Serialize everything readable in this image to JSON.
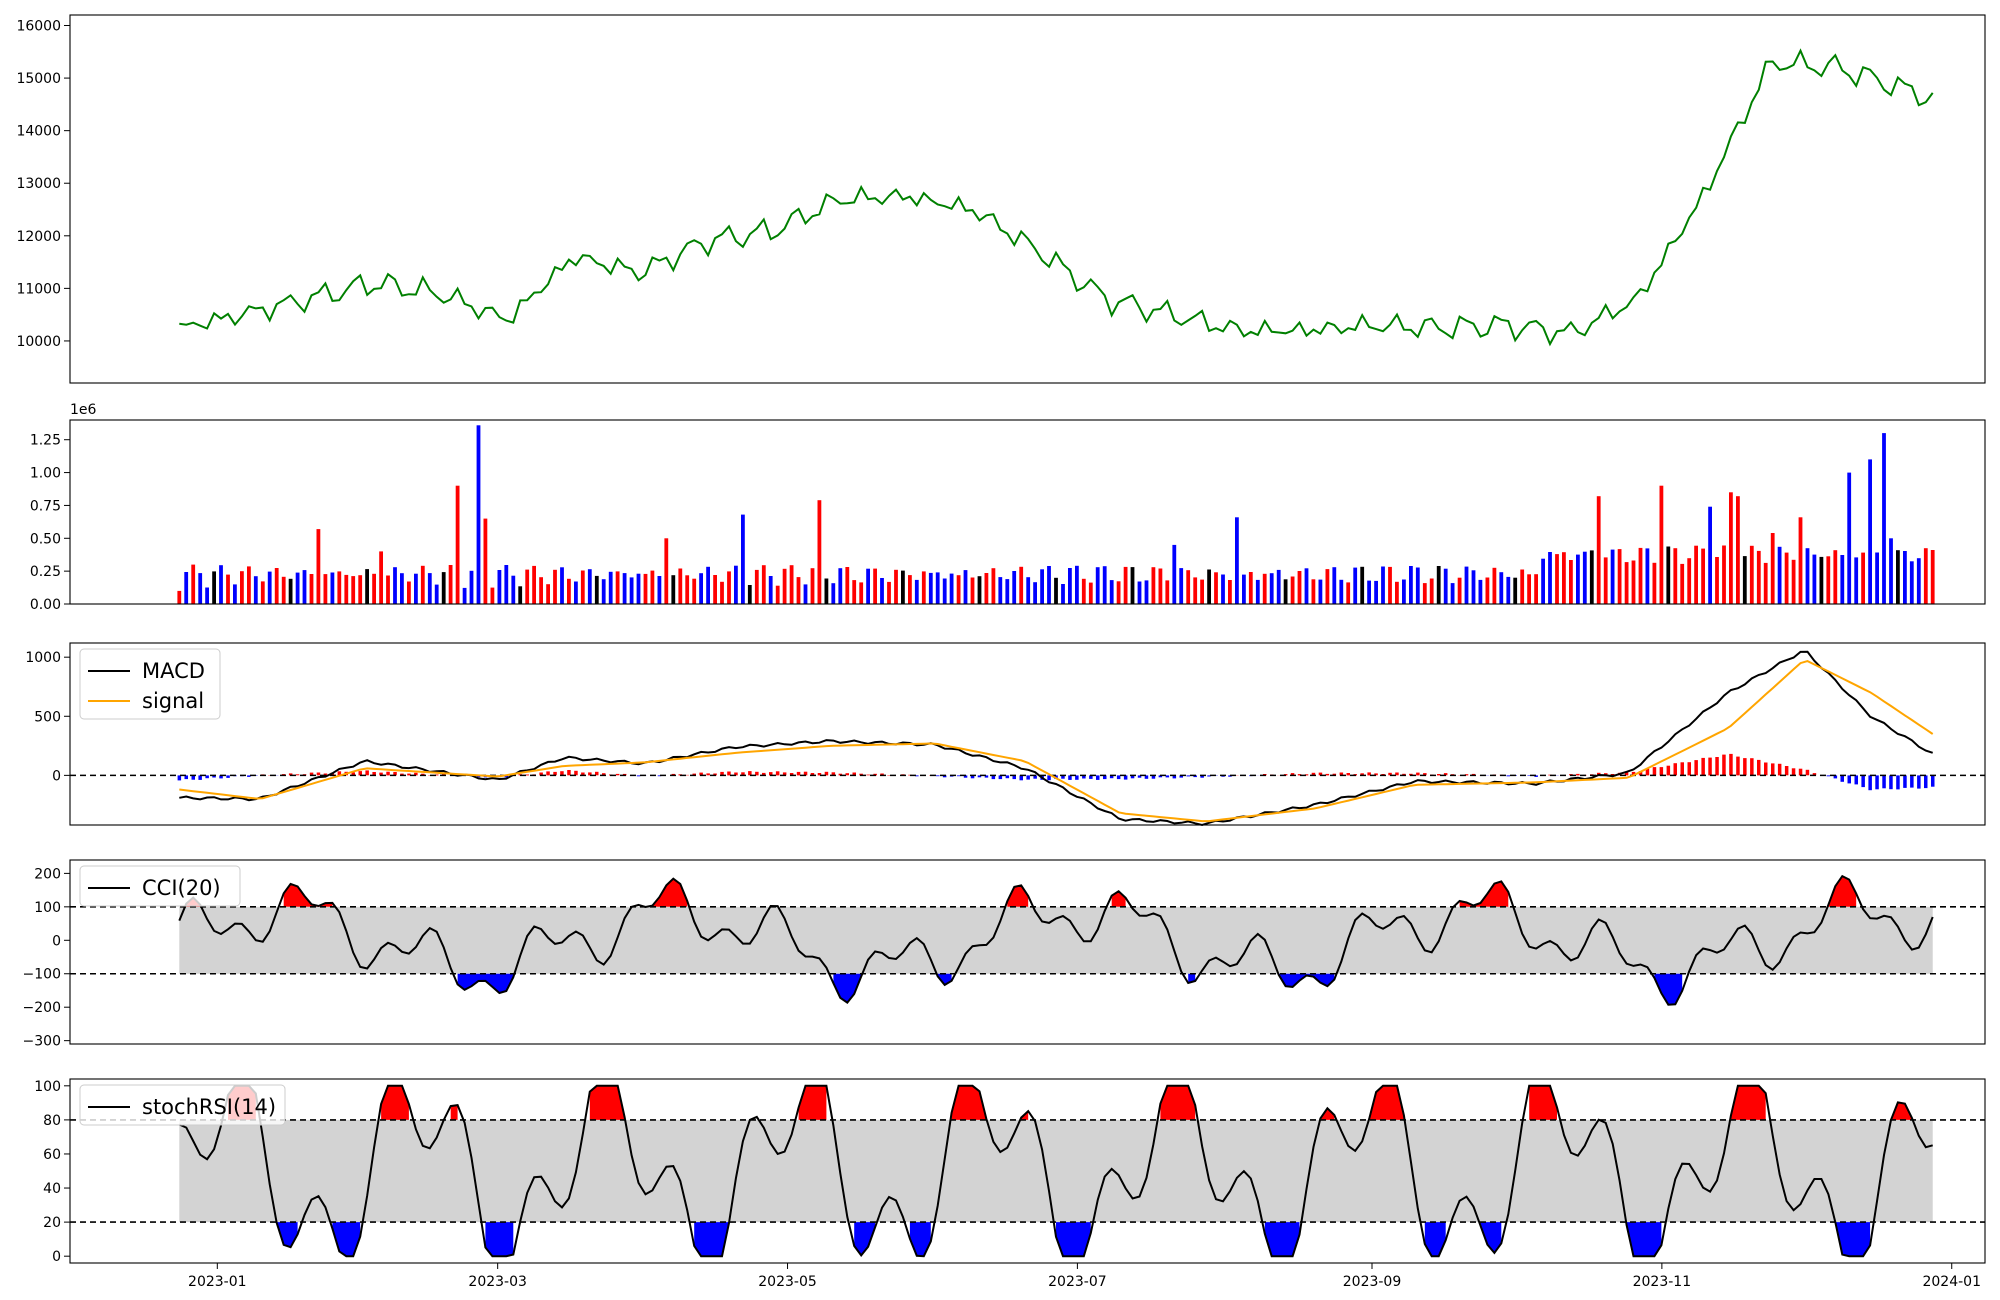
{
  "chart_data": [
    {
      "type": "line",
      "panel": "price",
      "x_dates": [
        "2022-12-24",
        "2023-01-06",
        "2023-01-20",
        "2023-02-03",
        "2023-02-17",
        "2023-03-03",
        "2023-03-17",
        "2023-03-31",
        "2023-04-14",
        "2023-04-28",
        "2023-05-12",
        "2023-05-26",
        "2023-06-09",
        "2023-06-23",
        "2023-07-07",
        "2023-07-21",
        "2023-08-04",
        "2023-08-18",
        "2023-09-01",
        "2023-09-15",
        "2023-09-29",
        "2023-10-13",
        "2023-10-27",
        "2023-11-10",
        "2023-11-24",
        "2023-12-08",
        "2023-12-22",
        "2023-12-28"
      ],
      "series": [
        {
          "color": "#008000",
          "values": [
            10250,
            10500,
            10800,
            11100,
            10900,
            10400,
            11600,
            11300,
            11900,
            12100,
            12700,
            12750,
            12500,
            11700,
            10800,
            10500,
            10200,
            10200,
            10300,
            10250,
            10300,
            10150,
            10800,
            12800,
            15300,
            15200,
            14800,
            14600
          ]
        }
      ],
      "ylim": [
        9200,
        16200
      ],
      "yticks": [
        "10000",
        "11000",
        "12000",
        "13000",
        "14000",
        "15000",
        "16000"
      ]
    },
    {
      "type": "bar",
      "panel": "volume",
      "scale_label": "1e6",
      "ylim": [
        0,
        1.4
      ],
      "yticks": [
        "0.00",
        "0.25",
        "0.50",
        "0.75",
        "1.00",
        "1.25"
      ],
      "colors": {
        "up": "#ff0000",
        "down": "#0000ff",
        "flat": "#000000"
      }
    },
    {
      "type": "line",
      "panel": "macd",
      "series": [
        {
          "name": "MACD",
          "color": "#000000"
        },
        {
          "name": "signal",
          "color": "#ffa500"
        }
      ],
      "x_dates": [
        "2022-12-24",
        "2023-01-10",
        "2023-02-01",
        "2023-03-01",
        "2023-03-15",
        "2023-04-01",
        "2023-04-20",
        "2023-05-10",
        "2023-06-01",
        "2023-06-20",
        "2023-07-10",
        "2023-07-28",
        "2023-08-20",
        "2023-09-10",
        "2023-10-05",
        "2023-10-25",
        "2023-11-15",
        "2023-12-01",
        "2023-12-15",
        "2023-12-28"
      ],
      "macd": [
        -190,
        -200,
        120,
        -40,
        150,
        100,
        240,
        290,
        260,
        60,
        -370,
        -410,
        -250,
        -50,
        -70,
        20,
        700,
        1060,
        500,
        180
      ],
      "signal": [
        -120,
        -200,
        60,
        -10,
        80,
        110,
        190,
        250,
        270,
        120,
        -320,
        -390,
        -280,
        -80,
        -60,
        -20,
        400,
        980,
        700,
        350
      ],
      "ylim": [
        -420,
        1120
      ],
      "yticks": [
        "0",
        "500",
        "1000"
      ],
      "zero_line": 0
    },
    {
      "type": "line",
      "panel": "cci",
      "series": [
        {
          "name": "CCI(20)",
          "color": "#000000"
        }
      ],
      "ylim": [
        -310,
        240
      ],
      "yticks": [
        "−300",
        "−200",
        "−100",
        "0",
        "100",
        "200"
      ],
      "bands": [
        -100,
        100
      ],
      "colors": {
        "band": "#d3d3d3",
        "above": "#ff0000",
        "below": "#0000ff"
      }
    },
    {
      "type": "line",
      "panel": "stochrsi",
      "series": [
        {
          "name": "stochRSI(14)",
          "color": "#000000"
        }
      ],
      "ylim": [
        -4,
        104
      ],
      "yticks": [
        "0",
        "20",
        "40",
        "60",
        "80",
        "100"
      ],
      "bands": [
        20,
        80
      ],
      "colors": {
        "band": "#d3d3d3",
        "above": "#ff0000",
        "below": "#0000ff"
      },
      "xticks": [
        "2023-01",
        "2023-03",
        "2023-05",
        "2023-07",
        "2023-09",
        "2023-11",
        "2024-01"
      ]
    }
  ]
}
